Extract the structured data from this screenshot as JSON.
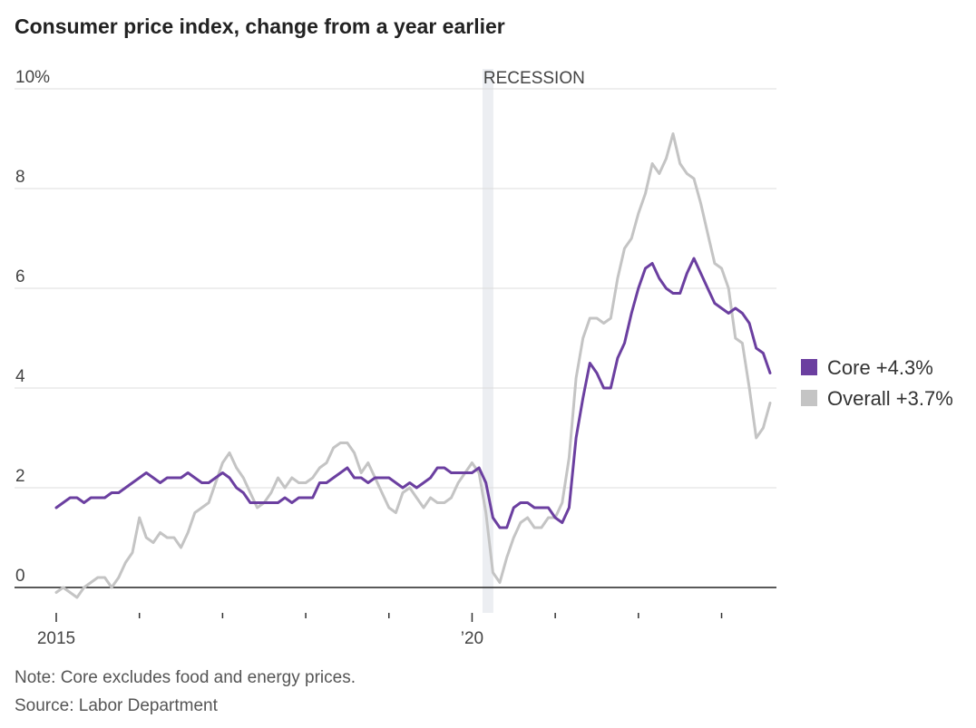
{
  "chart_data": {
    "type": "line",
    "title": "Consumer price index, change from a year earlier",
    "ylim": [
      0,
      10
    ],
    "yticks": [
      0,
      2,
      4,
      6,
      8,
      10
    ],
    "ytick_labels": [
      "0",
      "2",
      "4",
      "6",
      "8",
      "10%"
    ],
    "x_tick_labels": [
      {
        "year": 2015,
        "label": "2015"
      },
      {
        "year": 2020,
        "label": "’20"
      }
    ],
    "x_minor_ticks": [
      2016,
      2017,
      2018,
      2019,
      2021,
      2022,
      2023
    ],
    "recession": {
      "label": "RECESSION",
      "start": 2020.125,
      "end": 2020.25
    },
    "legend": {
      "position": "right"
    },
    "series": [
      {
        "name": "Core",
        "legend_label": "Core +4.3%",
        "color": "#6b3fa0",
        "start": 2015.0,
        "step_months": 1,
        "values": [
          1.6,
          1.7,
          1.8,
          1.8,
          1.7,
          1.8,
          1.8,
          1.8,
          1.9,
          1.9,
          2.0,
          2.1,
          2.2,
          2.3,
          2.2,
          2.1,
          2.2,
          2.2,
          2.2,
          2.3,
          2.2,
          2.1,
          2.1,
          2.2,
          2.3,
          2.2,
          2.0,
          1.9,
          1.7,
          1.7,
          1.7,
          1.7,
          1.7,
          1.8,
          1.7,
          1.8,
          1.8,
          1.8,
          2.1,
          2.1,
          2.2,
          2.3,
          2.4,
          2.2,
          2.2,
          2.1,
          2.2,
          2.2,
          2.2,
          2.1,
          2.0,
          2.1,
          2.0,
          2.1,
          2.2,
          2.4,
          2.4,
          2.3,
          2.3,
          2.3,
          2.3,
          2.4,
          2.1,
          1.4,
          1.2,
          1.2,
          1.6,
          1.7,
          1.7,
          1.6,
          1.6,
          1.6,
          1.4,
          1.3,
          1.6,
          3.0,
          3.8,
          4.5,
          4.3,
          4.0,
          4.0,
          4.6,
          4.9,
          5.5,
          6.0,
          6.4,
          6.5,
          6.2,
          6.0,
          5.9,
          5.9,
          6.3,
          6.6,
          6.3,
          6.0,
          5.7,
          5.6,
          5.5,
          5.6,
          5.5,
          5.3,
          4.8,
          4.7,
          4.3
        ]
      },
      {
        "name": "Overall",
        "legend_label": "Overall +3.7%",
        "color": "#c4c4c4",
        "start": 2015.0,
        "step_months": 1,
        "values": [
          -0.1,
          0.0,
          -0.1,
          -0.2,
          0.0,
          0.1,
          0.2,
          0.2,
          0.0,
          0.2,
          0.5,
          0.7,
          1.4,
          1.0,
          0.9,
          1.1,
          1.0,
          1.0,
          0.8,
          1.1,
          1.5,
          1.6,
          1.7,
          2.1,
          2.5,
          2.7,
          2.4,
          2.2,
          1.9,
          1.6,
          1.7,
          1.9,
          2.2,
          2.0,
          2.2,
          2.1,
          2.1,
          2.2,
          2.4,
          2.5,
          2.8,
          2.9,
          2.9,
          2.7,
          2.3,
          2.5,
          2.2,
          1.9,
          1.6,
          1.5,
          1.9,
          2.0,
          1.8,
          1.6,
          1.8,
          1.7,
          1.7,
          1.8,
          2.1,
          2.3,
          2.5,
          2.3,
          1.5,
          0.3,
          0.1,
          0.6,
          1.0,
          1.3,
          1.4,
          1.2,
          1.2,
          1.4,
          1.4,
          1.7,
          2.6,
          4.2,
          5.0,
          5.4,
          5.4,
          5.3,
          5.4,
          6.2,
          6.8,
          7.0,
          7.5,
          7.9,
          8.5,
          8.3,
          8.6,
          9.1,
          8.5,
          8.3,
          8.2,
          7.7,
          7.1,
          6.5,
          6.4,
          6.0,
          5.0,
          4.9,
          4.0,
          3.0,
          3.2,
          3.7
        ]
      }
    ]
  },
  "footer": {
    "note": "Note: Core excludes food and energy prices.",
    "source": "Source: Labor Department"
  }
}
